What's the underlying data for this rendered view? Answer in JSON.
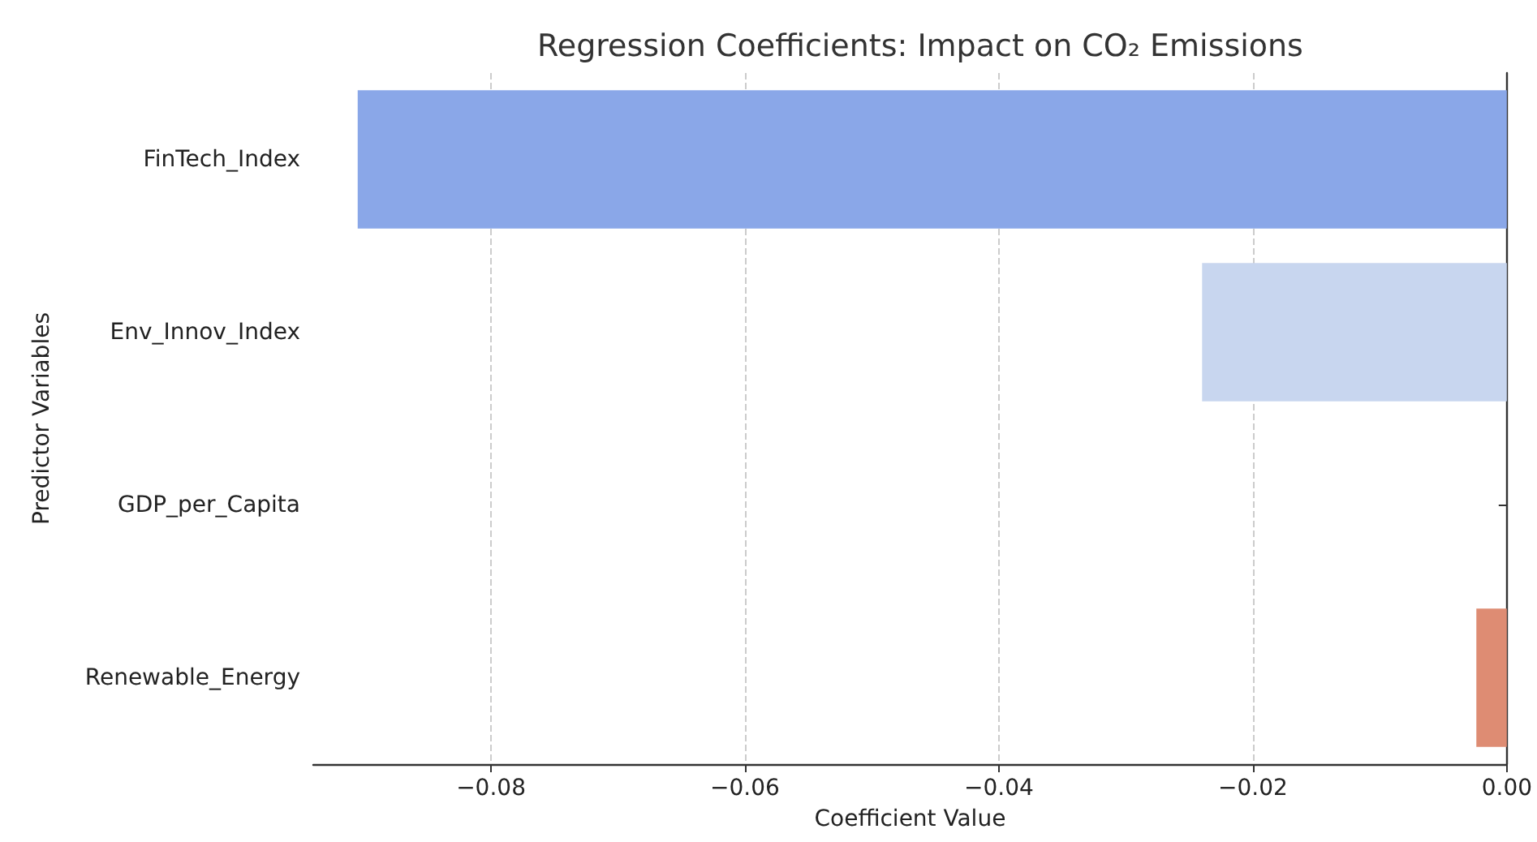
{
  "chart_data": {
    "type": "bar",
    "orientation": "horizontal",
    "title": "Regression Coefficients: Impact on CO₂ Emissions",
    "xlabel": "Coefficient Value",
    "ylabel": "Predictor Variables",
    "categories": [
      "FinTech_Index",
      "Env_Innov_Index",
      "GDP_per_Capita",
      "Renewable_Energy"
    ],
    "values": [
      -0.0905,
      -0.024,
      0,
      -0.0024
    ],
    "colors": [
      "#8aa7e8",
      "#c8d6ef",
      "#dcdddd",
      "#de8c73"
    ],
    "xlim": [
      -0.094,
      0
    ],
    "xticks": [
      -0.08,
      -0.06,
      -0.04,
      -0.02,
      {
        "value": 0,
        "label": "0.00"
      }
    ],
    "grid": "x"
  }
}
